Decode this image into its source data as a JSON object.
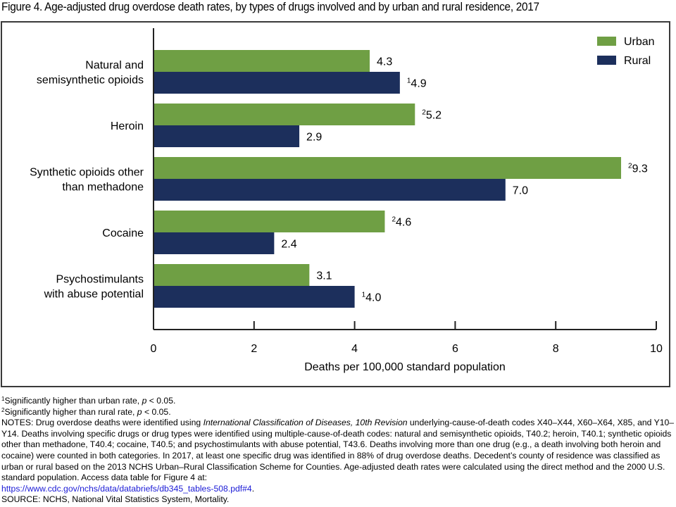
{
  "figure": {
    "title": "Figure 4. Age-adjusted drug overdose death rates, by types of drugs involved and by urban and rural residence, 2017"
  },
  "colors": {
    "urban": "#6f9f44",
    "rural": "#1c2f5c",
    "axis": "#222222",
    "frame": "#3a3a3a",
    "link": "#1a1ad6"
  },
  "chart_data": {
    "type": "bar",
    "orientation": "horizontal",
    "title": "Figure 4. Age-adjusted drug overdose death rates, by types of drugs involved and by urban and rural residence, 2017",
    "categories": [
      [
        "Natural and",
        "semisynthetic opioids"
      ],
      [
        "Heroin"
      ],
      [
        "Synthetic opioids other",
        "than methadone"
      ],
      [
        "Cocaine"
      ],
      [
        "Psychostimulants",
        "with abuse potential"
      ]
    ],
    "series": [
      {
        "name": "Urban",
        "color": "#6f9f44",
        "values": [
          4.3,
          5.2,
          9.3,
          4.6,
          3.1
        ],
        "labels": [
          "4.3",
          "5.2",
          "9.3",
          "4.6",
          "3.1"
        ],
        "footnote_marks": [
          "",
          "2",
          "2",
          "2",
          ""
        ]
      },
      {
        "name": "Rural",
        "color": "#1c2f5c",
        "values": [
          4.9,
          2.9,
          7.0,
          2.4,
          4.0
        ],
        "labels": [
          "4.9",
          "2.9",
          "7.0",
          "2.4",
          "4.0"
        ],
        "footnote_marks": [
          "1",
          "",
          "",
          "",
          "1"
        ]
      }
    ],
    "xlabel": "Deaths per 100,000 standard population",
    "ylabel": "",
    "xlim": [
      0,
      10
    ],
    "xticks": [
      0,
      2,
      4,
      6,
      8,
      10
    ],
    "xtick_labels": [
      "0",
      "2",
      "4",
      "6",
      "8",
      "10"
    ],
    "grid": false,
    "legend": {
      "position": "top-right",
      "entries": [
        "Urban",
        "Rural"
      ]
    }
  },
  "footnotes": {
    "note1_mark": "1",
    "note1_text": "Significantly higher than urban rate, ",
    "note1_p": "p",
    "note1_tail": " < 0.05.",
    "note2_mark": "2",
    "note2_text": "Significantly higher than rural rate, ",
    "note2_p": "p",
    "note2_tail": " < 0.05.",
    "notes_lead": "NOTES: Drug overdose deaths were identified using ",
    "notes_italic": "International Classification of Diseases, 10th Revision",
    "notes_body": " underlying-cause-of-death codes X40–X44, X60–X64, X85, and Y10–Y14. Deaths involving specific drugs or drug types were identified using multiple-cause-of-death codes: natural and semisynthetic opioids, T40.2; heroin, T40.1; synthetic opioids other than methadone, T40.4; cocaine, T40.5; and psychostimulants with abuse potential, T43.6. Deaths involving more than one drug (e.g., a death involving both heroin and cocaine) were counted in both categories. In 2017, at least one specific drug was identified in 88% of drug overdose deaths. Decedent’s county of residence was classified as urban or rural based on the 2013 NCHS Urban–Rural Classification Scheme for Counties. Age-adjusted death rates were calculated using the direct method and the 2000 U.S. standard population. Access data table for Figure 4 at:",
    "link_text": "https://www.cdc.gov/nchs/data/databriefs/db345_tables-508.pdf#4",
    "link_tail": ".",
    "source": "SOURCE: NCHS, National Vital Statistics System, Mortality."
  }
}
